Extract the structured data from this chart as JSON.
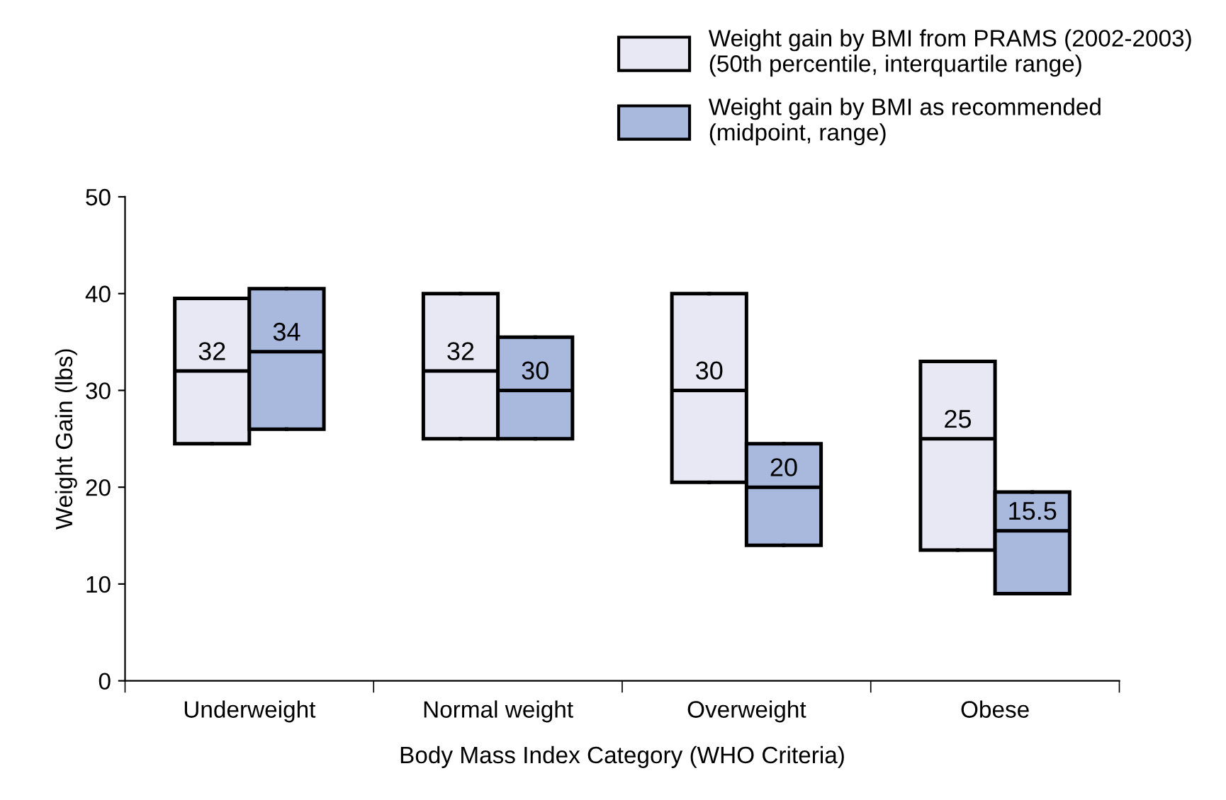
{
  "chart_data": {
    "type": "box",
    "xlabel": "Body Mass Index Category (WHO Criteria)",
    "ylabel": "Weight Gain (lbs)",
    "categories": [
      "Underweight",
      "Normal weight",
      "Overweight",
      "Obese"
    ],
    "ylim": [
      0,
      50
    ],
    "yticks": [
      0,
      10,
      20,
      30,
      40,
      50
    ],
    "grid": false,
    "legend": "top right",
    "series": [
      {
        "name": "Weight gain by BMI from PRAMS (2002-2003)\n(50th percentile, interquartile range)",
        "color": "#e8e8f4",
        "value_labels": [
          "32",
          "32",
          "30",
          "25"
        ],
        "boxes": [
          {
            "low": 24.5,
            "q1": 24.5,
            "median": 32,
            "q3": 39.5,
            "high": 39.5
          },
          {
            "low": 25,
            "q1": 25,
            "median": 32,
            "q3": 40,
            "high": 40
          },
          {
            "low": 20.5,
            "q1": 20.5,
            "median": 30,
            "q3": 40,
            "high": 40
          },
          {
            "low": 13.5,
            "q1": 13.5,
            "median": 25,
            "q3": 33,
            "high": 33
          }
        ]
      },
      {
        "name": "Weight gain by BMI as recommended\n(midpoint, range)",
        "color": "#a9b9de",
        "value_labels": [
          "34",
          "30",
          "20",
          "15.5"
        ],
        "boxes": [
          {
            "low": 26,
            "q1": 26,
            "median": 34,
            "q3": 40.5,
            "high": 40.5
          },
          {
            "low": 25,
            "q1": 25,
            "median": 30,
            "q3": 35.5,
            "high": 35.5
          },
          {
            "low": 14,
            "q1": 14,
            "median": 20,
            "q3": 24.5,
            "high": 24.5
          },
          {
            "low": 9,
            "q1": 9,
            "median": 15.5,
            "q3": 19.5,
            "high": 19.5
          }
        ]
      }
    ]
  }
}
